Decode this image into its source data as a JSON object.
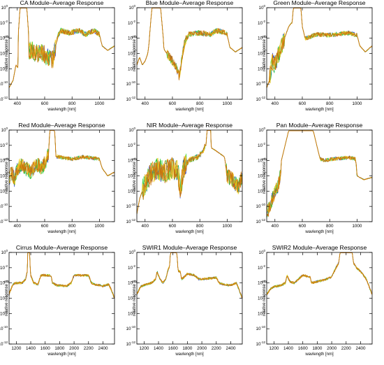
{
  "colors": {
    "axis": "#000000",
    "series_palette": [
      "#1f3cd6",
      "#18b84a",
      "#3fd23f",
      "#f2d21a",
      "#e8a020",
      "#c8750f"
    ]
  },
  "chart_data": [
    {
      "type": "line",
      "title": "CA Module–Average Response",
      "xlabel": "wavlength [nm]",
      "ylabel": "relative response []",
      "xlim": [
        340,
        1110
      ],
      "ylog": true,
      "ylim_exp": [
        -12,
        0
      ],
      "xticks": [
        400,
        600,
        800,
        1000
      ],
      "yticks_exp": [
        -12,
        -10,
        -8,
        -6,
        -4,
        -2,
        0
      ],
      "peaks": [
        {
          "center": 445,
          "halfwidth": 25,
          "plateau": -0.05
        }
      ],
      "baseline": [
        [
          340,
          -10.5
        ],
        [
          370,
          -9.5
        ],
        [
          390,
          -7.5
        ],
        [
          410,
          -8
        ],
        [
          430,
          -6
        ],
        [
          440,
          -3
        ],
        [
          460,
          -2
        ],
        [
          480,
          -6
        ],
        [
          500,
          -5.5
        ],
        [
          540,
          -6
        ],
        [
          580,
          -5.8
        ],
        [
          620,
          -6.5
        ],
        [
          660,
          -6.8
        ],
        [
          680,
          -5.0
        ],
        [
          700,
          -3.5
        ],
        [
          720,
          -3.0
        ],
        [
          780,
          -3.3
        ],
        [
          850,
          -3.0
        ],
        [
          900,
          -3.5
        ],
        [
          960,
          -3.0
        ],
        [
          1000,
          -3.5
        ],
        [
          1020,
          -5.0
        ],
        [
          1060,
          -5.6
        ],
        [
          1110,
          -5.0
        ]
      ],
      "noise": [
        {
          "from": 470,
          "to": 680,
          "amp": 1.2
        },
        {
          "from": 690,
          "to": 1000,
          "amp": 0.35
        }
      ],
      "grid": false
    },
    {
      "type": "line",
      "title": "Blue Module–Average Response",
      "xlabel": "wavlength [nm]",
      "ylabel": "relative response []",
      "xlim": [
        340,
        1110
      ],
      "ylog": true,
      "ylim_exp": [
        -12,
        0
      ],
      "xticks": [
        400,
        600,
        800,
        1000
      ],
      "yticks_exp": [
        -12,
        -10,
        -8,
        -6,
        -4,
        -2,
        0
      ],
      "peaks": [
        {
          "center": 482,
          "halfwidth": 32,
          "plateau": -0.05
        }
      ],
      "baseline": [
        [
          340,
          -7.5
        ],
        [
          360,
          -6.5
        ],
        [
          380,
          -7.5
        ],
        [
          400,
          -7
        ],
        [
          420,
          -6
        ],
        [
          440,
          -3
        ],
        [
          520,
          -3.5
        ],
        [
          540,
          -5.5
        ],
        [
          580,
          -6.5
        ],
        [
          620,
          -7.5
        ],
        [
          650,
          -9
        ],
        [
          670,
          -6.5
        ],
        [
          690,
          -4.5
        ],
        [
          720,
          -3.5
        ],
        [
          800,
          -3.3
        ],
        [
          880,
          -3.5
        ],
        [
          920,
          -3.0
        ],
        [
          980,
          -3.2
        ],
        [
          1000,
          -3.6
        ],
        [
          1020,
          -5.2
        ],
        [
          1060,
          -5.8
        ],
        [
          1110,
          -5.2
        ]
      ],
      "noise": [
        {
          "from": 560,
          "to": 700,
          "amp": 0.6
        },
        {
          "from": 700,
          "to": 1000,
          "amp": 0.35
        }
      ],
      "grid": false
    },
    {
      "type": "line",
      "title": "Green Module–Average Response",
      "xlabel": "wavlength [nm]",
      "ylabel": "relative response []",
      "xlim": [
        340,
        1110
      ],
      "ylog": true,
      "ylim_exp": [
        -12,
        0
      ],
      "xticks": [
        400,
        600,
        800,
        1000
      ],
      "yticks_exp": [
        -12,
        -10,
        -8,
        -6,
        -4,
        -2,
        0
      ],
      "peaks": [
        {
          "center": 562,
          "halfwidth": 28,
          "plateau": -0.05
        }
      ],
      "baseline": [
        [
          340,
          -10.5
        ],
        [
          360,
          -9.5
        ],
        [
          380,
          -7
        ],
        [
          400,
          -7.5
        ],
        [
          430,
          -6
        ],
        [
          460,
          -4.5
        ],
        [
          500,
          -2.5
        ],
        [
          520,
          -2.0
        ],
        [
          600,
          -2.5
        ],
        [
          620,
          -4.0
        ],
        [
          660,
          -3.8
        ],
        [
          700,
          -3.5
        ],
        [
          800,
          -3.6
        ],
        [
          880,
          -3.4
        ],
        [
          940,
          -3.3
        ],
        [
          1000,
          -3.6
        ],
        [
          1020,
          -5.0
        ],
        [
          1060,
          -5.8
        ],
        [
          1110,
          -5.0
        ]
      ],
      "noise": [
        {
          "from": 360,
          "to": 470,
          "amp": 1.2
        },
        {
          "from": 620,
          "to": 1000,
          "amp": 0.3
        }
      ],
      "grid": false
    },
    {
      "type": "line",
      "title": "Red Module–Average Response",
      "xlabel": "wavlength [nm]",
      "ylabel": "relative response []",
      "xlim": [
        340,
        1110
      ],
      "ylog": true,
      "ylim_exp": [
        -12,
        0
      ],
      "xticks": [
        400,
        600,
        800,
        1000
      ],
      "yticks_exp": [
        -12,
        -10,
        -8,
        -6,
        -4,
        -2,
        0
      ],
      "peaks": [
        {
          "center": 655,
          "halfwidth": 18,
          "plateau": -0.05
        }
      ],
      "baseline": [
        [
          340,
          -6.5
        ],
        [
          360,
          -5.5
        ],
        [
          380,
          -6.5
        ],
        [
          400,
          -5.0
        ],
        [
          430,
          -4.5
        ],
        [
          460,
          -5.0
        ],
        [
          500,
          -5.5
        ],
        [
          540,
          -4.5
        ],
        [
          580,
          -5.0
        ],
        [
          610,
          -4.0
        ],
        [
          630,
          -3.0
        ],
        [
          680,
          -3.5
        ],
        [
          700,
          -3.5
        ],
        [
          800,
          -3.8
        ],
        [
          880,
          -3.5
        ],
        [
          960,
          -3.7
        ],
        [
          1000,
          -3.8
        ],
        [
          1020,
          -5.0
        ],
        [
          1060,
          -6.0
        ],
        [
          1110,
          -5.5
        ]
      ],
      "noise": [
        {
          "from": 340,
          "to": 630,
          "amp": 1.0
        },
        {
          "from": 690,
          "to": 1000,
          "amp": 0.25
        }
      ],
      "grid": false
    },
    {
      "type": "line",
      "title": "NIR Module–Average Response",
      "xlabel": "wavlength [nm]",
      "ylabel": "relative response []",
      "xlim": [
        340,
        1110
      ],
      "ylog": true,
      "ylim_exp": [
        -12,
        0
      ],
      "xticks": [
        400,
        600,
        800,
        1000
      ],
      "yticks_exp": [
        -12,
        -10,
        -8,
        -6,
        -4,
        -2,
        0
      ],
      "peaks": [
        {
          "center": 865,
          "halfwidth": 14,
          "plateau": -0.05
        }
      ],
      "baseline": [
        [
          340,
          -11
        ],
        [
          360,
          -9
        ],
        [
          390,
          -7.5
        ],
        [
          430,
          -6.0
        ],
        [
          480,
          -5.0
        ],
        [
          540,
          -5.5
        ],
        [
          600,
          -5.0
        ],
        [
          640,
          -5.5
        ],
        [
          660,
          -8
        ],
        [
          680,
          -5.0
        ],
        [
          720,
          -4.0
        ],
        [
          780,
          -3.5
        ],
        [
          820,
          -3.0
        ],
        [
          840,
          -2.0
        ],
        [
          900,
          -2.5
        ],
        [
          940,
          -3.0
        ],
        [
          980,
          -3.5
        ],
        [
          1000,
          -6.0
        ],
        [
          1040,
          -6.5
        ],
        [
          1080,
          -7.5
        ],
        [
          1110,
          -6.0
        ]
      ],
      "noise": [
        {
          "from": 380,
          "to": 700,
          "amp": 1.5
        },
        {
          "from": 700,
          "to": 840,
          "amp": 0.4
        },
        {
          "from": 990,
          "to": 1110,
          "amp": 1.0
        }
      ],
      "grid": false
    },
    {
      "type": "line",
      "title": "Pan Module–Average Response",
      "xlabel": "wavlength [nm]",
      "ylabel": "relative response []",
      "xlim": [
        340,
        1110
      ],
      "ylog": true,
      "ylim_exp": [
        -12,
        0
      ],
      "xticks": [
        400,
        600,
        800,
        1000
      ],
      "yticks_exp": [
        -12,
        -10,
        -8,
        -6,
        -4,
        -2,
        0
      ],
      "peaks": [
        {
          "center": 590,
          "halfwidth": 90,
          "plateau": -0.1
        }
      ],
      "baseline": [
        [
          340,
          -11
        ],
        [
          360,
          -10
        ],
        [
          380,
          -9
        ],
        [
          420,
          -7.5
        ],
        [
          460,
          -4.5
        ],
        [
          490,
          -2.5
        ],
        [
          500,
          -1.5
        ],
        [
          680,
          -2.0
        ],
        [
          700,
          -3.5
        ],
        [
          760,
          -4.0
        ],
        [
          820,
          -3.8
        ],
        [
          880,
          -3.7
        ],
        [
          940,
          -3.6
        ],
        [
          990,
          -3.8
        ],
        [
          1000,
          -6.0
        ],
        [
          1050,
          -6.5
        ],
        [
          1110,
          -6.2
        ]
      ],
      "noise": [
        {
          "from": 340,
          "to": 440,
          "amp": 1.0
        },
        {
          "from": 700,
          "to": 1000,
          "amp": 0.25
        }
      ],
      "grid": false
    },
    {
      "type": "line",
      "title": "Cirrus Module–Average Response",
      "xlabel": "wavlength [nm]",
      "ylabel": "relative response []",
      "xlim": [
        1100,
        2560
      ],
      "ylog": true,
      "ylim_exp": [
        -12,
        0
      ],
      "xticks": [
        1200,
        1400,
        1600,
        1800,
        2000,
        2200,
        2400
      ],
      "yticks_exp": [
        -12,
        -10,
        -8,
        -6,
        -4,
        -2,
        0
      ],
      "peaks": [
        {
          "center": 1373,
          "halfwidth": 15,
          "plateau": -0.05
        }
      ],
      "baseline": [
        [
          1100,
          -5.5
        ],
        [
          1150,
          -4.2
        ],
        [
          1200,
          -4.0
        ],
        [
          1280,
          -4.0
        ],
        [
          1330,
          -3.5
        ],
        [
          1350,
          -2.5
        ],
        [
          1400,
          -3.0
        ],
        [
          1440,
          -4.0
        ],
        [
          1500,
          -4.2
        ],
        [
          1540,
          -3.0
        ],
        [
          1680,
          -3.0
        ],
        [
          1700,
          -4.0
        ],
        [
          1760,
          -4.3
        ],
        [
          1900,
          -4.4
        ],
        [
          1960,
          -4.0
        ],
        [
          2000,
          -3.0
        ],
        [
          2200,
          -3.0
        ],
        [
          2240,
          -4.0
        ],
        [
          2300,
          -4.2
        ],
        [
          2400,
          -4.4
        ],
        [
          2480,
          -4.2
        ],
        [
          2520,
          -5.0
        ],
        [
          2560,
          -6.0
        ]
      ],
      "noise": [
        {
          "from": 1100,
          "to": 2560,
          "amp": 0.15
        }
      ],
      "grid": false
    },
    {
      "type": "line",
      "title": "SWIR1 Module–Average Response",
      "xlabel": "wavlength [nm]",
      "ylabel": "relative response []",
      "xlim": [
        1100,
        2560
      ],
      "ylog": true,
      "ylim_exp": [
        -12,
        0
      ],
      "xticks": [
        1200,
        1400,
        1600,
        1800,
        2000,
        2200,
        2400
      ],
      "yticks_exp": [
        -12,
        -10,
        -8,
        -6,
        -4,
        -2,
        0
      ],
      "peaks": [
        {
          "center": 1610,
          "halfwidth": 45,
          "plateau": -0.05
        }
      ],
      "baseline": [
        [
          1100,
          -5.5
        ],
        [
          1150,
          -4.5
        ],
        [
          1200,
          -4.3
        ],
        [
          1300,
          -4.0
        ],
        [
          1360,
          -3.5
        ],
        [
          1380,
          -2.5
        ],
        [
          1420,
          -3.5
        ],
        [
          1460,
          -4.0
        ],
        [
          1500,
          -3.5
        ],
        [
          1540,
          -2.0
        ],
        [
          1700,
          -2.5
        ],
        [
          1720,
          -3.5
        ],
        [
          1760,
          -3.2
        ],
        [
          1800,
          -2.8
        ],
        [
          1900,
          -3.0
        ],
        [
          1960,
          -3.5
        ],
        [
          2000,
          -3.5
        ],
        [
          2200,
          -3.3
        ],
        [
          2240,
          -4.0
        ],
        [
          2300,
          -4.2
        ],
        [
          2400,
          -4.3
        ],
        [
          2480,
          -4.0
        ],
        [
          2520,
          -5.0
        ],
        [
          2560,
          -6.0
        ]
      ],
      "noise": [
        {
          "from": 1100,
          "to": 2560,
          "amp": 0.15
        }
      ],
      "grid": false
    },
    {
      "type": "line",
      "title": "SWIR2 Module–Average Response",
      "xlabel": "wavlength [nm]",
      "ylabel": "relative response []",
      "xlim": [
        1100,
        2560
      ],
      "ylog": true,
      "ylim_exp": [
        -12,
        0
      ],
      "xticks": [
        1200,
        1400,
        1600,
        1800,
        2000,
        2200,
        2400
      ],
      "yticks_exp": [
        -12,
        -10,
        -8,
        -6,
        -4,
        -2,
        0
      ],
      "peaks": [
        {
          "center": 2200,
          "halfwidth": 85,
          "plateau": -0.05
        }
      ],
      "baseline": [
        [
          1100,
          -5.5
        ],
        [
          1150,
          -4.8
        ],
        [
          1200,
          -4.5
        ],
        [
          1300,
          -4.3
        ],
        [
          1360,
          -4.0
        ],
        [
          1380,
          -3.0
        ],
        [
          1420,
          -3.8
        ],
        [
          1480,
          -4.0
        ],
        [
          1540,
          -3.5
        ],
        [
          1600,
          -3.0
        ],
        [
          1700,
          -3.2
        ],
        [
          1720,
          -4.0
        ],
        [
          1800,
          -3.8
        ],
        [
          1900,
          -3.6
        ],
        [
          2000,
          -3.2
        ],
        [
          2060,
          -2.0
        ],
        [
          2120,
          -1.0
        ],
        [
          2280,
          -1.0
        ],
        [
          2340,
          -2.0
        ],
        [
          2400,
          -2.5
        ],
        [
          2480,
          -3.5
        ],
        [
          2520,
          -4.5
        ],
        [
          2560,
          -5.5
        ]
      ],
      "noise": [
        {
          "from": 1100,
          "to": 2560,
          "amp": 0.15
        }
      ],
      "grid": false
    }
  ]
}
